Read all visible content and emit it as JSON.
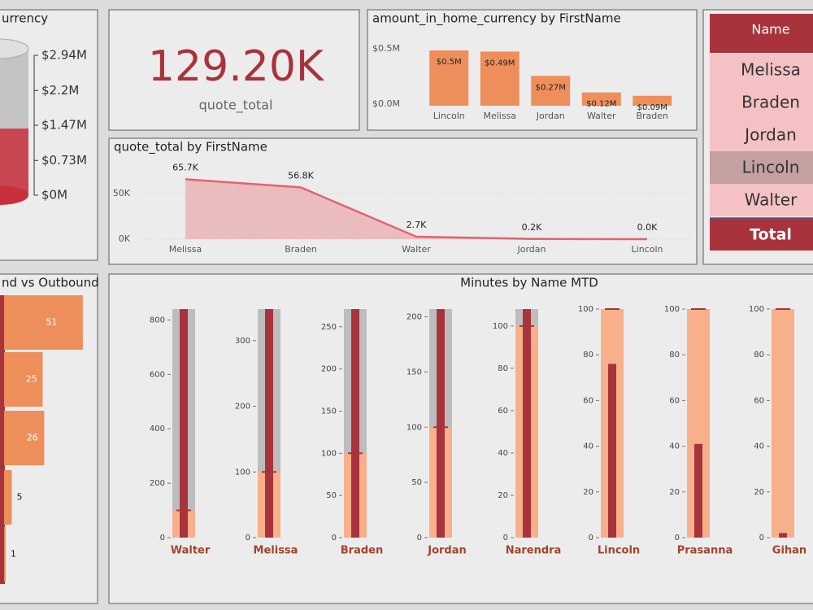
{
  "chart_data": [
    {
      "type": "gauge",
      "title": "urrency",
      "value": 1400000,
      "color": "#c8303d",
      "ylim": [
        0,
        2940000
      ],
      "yticks": [
        {
          "value": 0,
          "label": "$0M"
        },
        {
          "value": 730000,
          "label": "$0.73M"
        },
        {
          "value": 1470000,
          "label": "$1.47M"
        },
        {
          "value": 2200000,
          "label": "$2.2M"
        },
        {
          "value": 2940000,
          "label": "$2.94M"
        }
      ]
    },
    {
      "type": "bar",
      "title": "amount_in_home_currency by FirstName",
      "categories": [
        "Lincoln",
        "Melissa",
        "Jordan",
        "Walter",
        "Braden"
      ],
      "values": [
        500000,
        490000,
        270000,
        120000,
        90000
      ],
      "value_labels": [
        "$0.5M",
        "$0.49M",
        "$0.27M",
        "$0.12M",
        "$0.09M"
      ],
      "color": "#ee8f5b",
      "ylim": [
        0,
        500000
      ],
      "yticks": [
        {
          "value": 0,
          "label": "$0.0M"
        },
        {
          "value": 500000,
          "label": "$0.5M"
        }
      ]
    },
    {
      "type": "area",
      "title": "quote_total by FirstName",
      "categories": [
        "Melissa",
        "Braden",
        "Walter",
        "Jordan",
        "Lincoln"
      ],
      "values": [
        65700,
        56800,
        2700,
        200,
        0
      ],
      "value_labels": [
        "65.7K",
        "56.8K",
        "2.7K",
        "0.2K",
        "0.0K"
      ],
      "color": "#e06470",
      "ylim": [
        0,
        70000
      ],
      "yticks": [
        {
          "value": 0,
          "label": "0K"
        },
        {
          "value": 50000,
          "label": "50K"
        }
      ]
    },
    {
      "type": "hbar",
      "title": "nd vs Outbound",
      "values": [
        51,
        25,
        26,
        5,
        1
      ],
      "color": "#ee8f5b",
      "xlim": [
        0,
        60
      ]
    },
    {
      "type": "bullet",
      "title": "Minutes by Name MTD",
      "colors": [
        "#a8333d",
        "#f7b08a",
        "#bdbdbd"
      ],
      "items": [
        {
          "category": "Walter",
          "value": 840,
          "target": 100,
          "max": 840,
          "ylim": [
            0,
            840
          ],
          "yticks": [
            0,
            200,
            400,
            600,
            800
          ]
        },
        {
          "category": "Melissa",
          "value": 348,
          "target": 100,
          "max": 348,
          "ylim": [
            0,
            348
          ],
          "yticks": [
            0,
            100,
            200,
            300
          ]
        },
        {
          "category": "Braden",
          "value": 271,
          "target": 100,
          "max": 271,
          "ylim": [
            0,
            271
          ],
          "yticks": [
            0,
            50,
            100,
            150,
            200,
            250
          ]
        },
        {
          "category": "Jordan",
          "value": 207,
          "target": 100,
          "max": 207,
          "ylim": [
            0,
            207
          ],
          "yticks": [
            0,
            50,
            100,
            150,
            200
          ]
        },
        {
          "category": "Narendra",
          "value": 108,
          "target": 100,
          "max": 108,
          "ylim": [
            0,
            108
          ],
          "yticks": [
            0,
            20,
            40,
            60,
            80,
            100
          ]
        },
        {
          "category": "Lincoln",
          "value": 76,
          "target": 100,
          "max": 100,
          "ylim": [
            0,
            100
          ],
          "yticks": [
            0,
            20,
            40,
            60,
            80,
            100
          ]
        },
        {
          "category": "Prasanna",
          "value": 41,
          "target": 100,
          "max": 100,
          "ylim": [
            0,
            100
          ],
          "yticks": [
            0,
            20,
            40,
            60,
            80,
            100
          ]
        },
        {
          "category": "Gihan",
          "value": 2,
          "target": 100,
          "max": 100,
          "ylim": [
            0,
            100
          ],
          "yticks": [
            0,
            20,
            40,
            60,
            80,
            100
          ]
        }
      ]
    }
  ],
  "kpi": {
    "value": "129.20K",
    "label": "quote_total"
  },
  "table": {
    "header": "Name",
    "rows": [
      "Melissa",
      "Braden",
      "Jordan",
      "Lincoln",
      "Walter"
    ],
    "selected": 3,
    "total": "Total"
  }
}
